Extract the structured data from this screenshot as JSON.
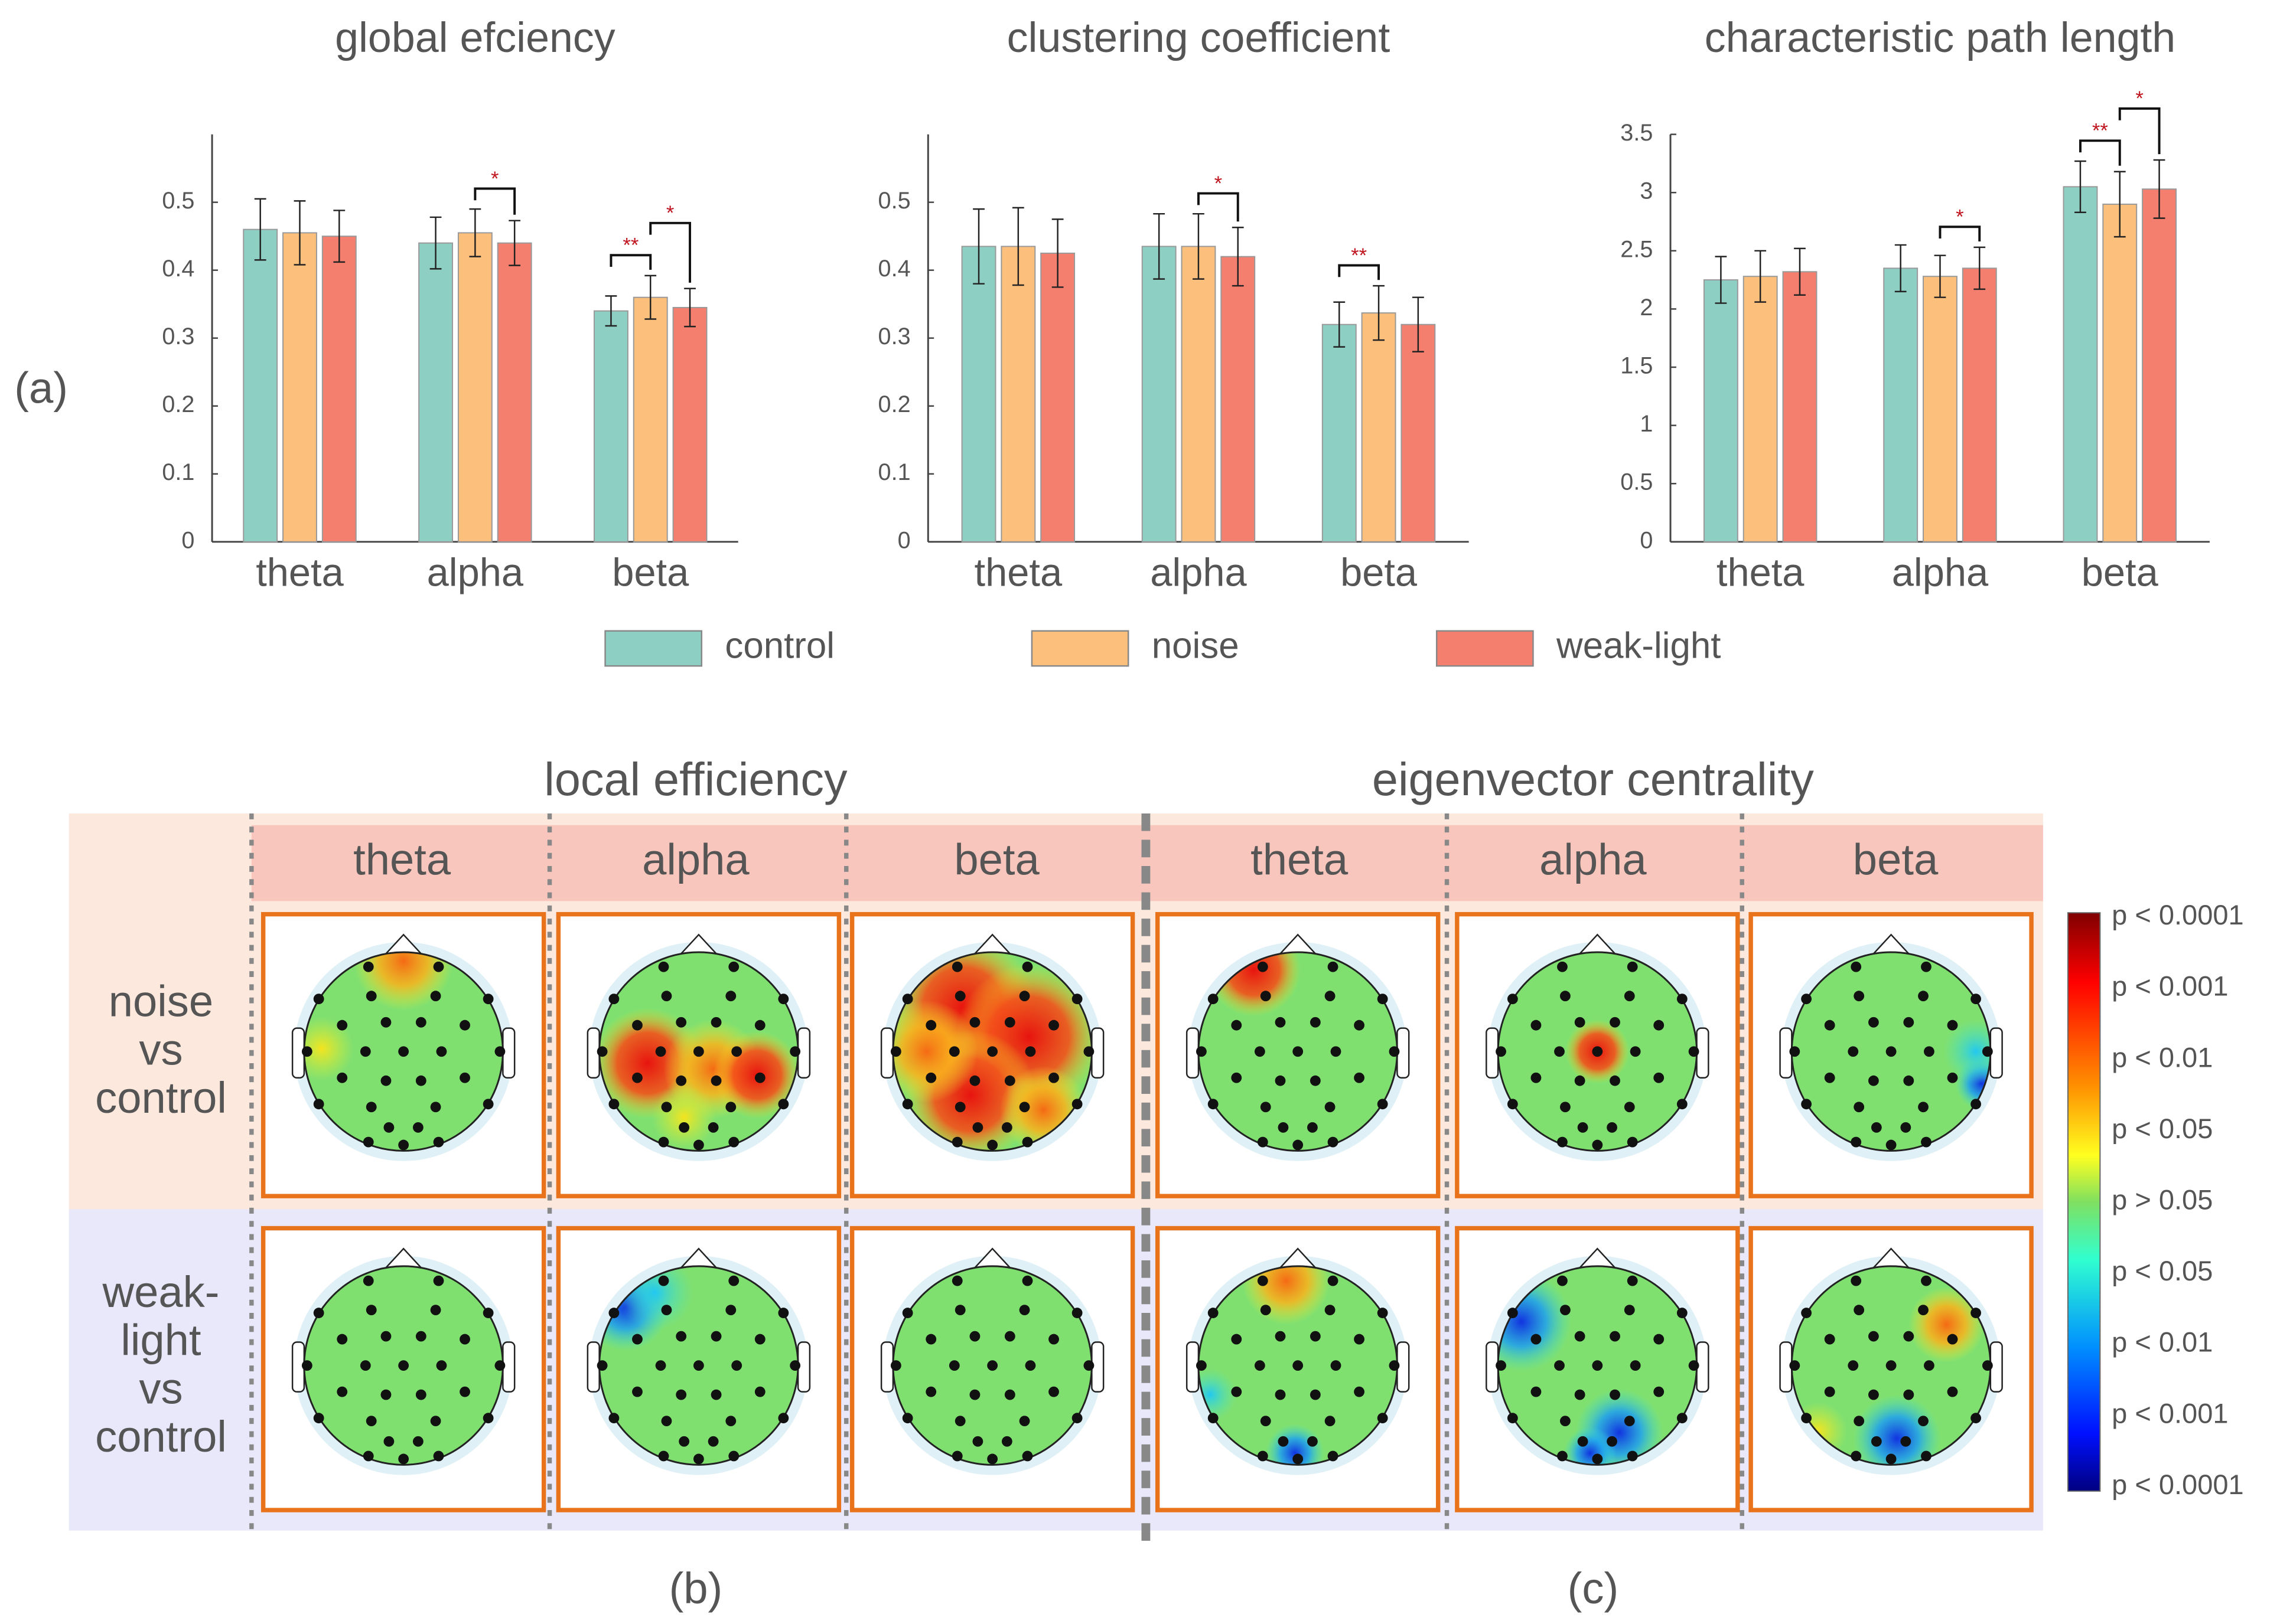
{
  "chart_data": [
    {
      "type": "bar",
      "title": "global efciency",
      "categories": [
        "theta",
        "alpha",
        "beta"
      ],
      "series": [
        {
          "name": "control",
          "color": "#8ecfc4",
          "values": [
            0.46,
            0.44,
            0.34
          ],
          "errors": [
            0.045,
            0.038,
            0.022
          ]
        },
        {
          "name": "noise",
          "color": "#fdbf7c",
          "values": [
            0.455,
            0.455,
            0.36
          ],
          "errors": [
            0.047,
            0.035,
            0.032
          ]
        },
        {
          "name": "weak-light",
          "color": "#f47f6f",
          "values": [
            0.45,
            0.44,
            0.345
          ],
          "errors": [
            0.038,
            0.033,
            0.028
          ]
        }
      ],
      "ylim": [
        0,
        0.6
      ],
      "yticks": [
        0,
        0.1,
        0.2,
        0.3,
        0.4,
        0.5
      ],
      "significance": [
        {
          "label": "*",
          "category": "alpha",
          "pair": [
            "noise",
            "weak-light"
          ]
        },
        {
          "label": "**",
          "category": "beta",
          "pair": [
            "control",
            "noise"
          ]
        },
        {
          "label": "*",
          "category": "beta",
          "pair": [
            "noise",
            "weak-light"
          ]
        }
      ]
    },
    {
      "type": "bar",
      "title": "clustering coefficient",
      "categories": [
        "theta",
        "alpha",
        "beta"
      ],
      "series": [
        {
          "name": "control",
          "color": "#8ecfc4",
          "values": [
            0.435,
            0.435,
            0.32
          ],
          "errors": [
            0.055,
            0.048,
            0.033
          ]
        },
        {
          "name": "noise",
          "color": "#fdbf7c",
          "values": [
            0.435,
            0.435,
            0.337
          ],
          "errors": [
            0.057,
            0.048,
            0.04
          ]
        },
        {
          "name": "weak-light",
          "color": "#f47f6f",
          "values": [
            0.425,
            0.42,
            0.32
          ],
          "errors": [
            0.05,
            0.043,
            0.04
          ]
        }
      ],
      "ylim": [
        0,
        0.6
      ],
      "yticks": [
        0,
        0.1,
        0.2,
        0.3,
        0.4,
        0.5
      ],
      "significance": [
        {
          "label": "*",
          "category": "alpha",
          "pair": [
            "noise",
            "weak-light"
          ]
        },
        {
          "label": "**",
          "category": "beta",
          "pair": [
            "control",
            "noise"
          ]
        }
      ]
    },
    {
      "type": "bar",
      "title": "characteristic path length",
      "categories": [
        "theta",
        "alpha",
        "beta"
      ],
      "series": [
        {
          "name": "control",
          "color": "#8ecfc4",
          "values": [
            2.25,
            2.35,
            3.05
          ],
          "errors": [
            0.2,
            0.2,
            0.22
          ]
        },
        {
          "name": "noise",
          "color": "#fdbf7c",
          "values": [
            2.28,
            2.28,
            2.9
          ],
          "errors": [
            0.22,
            0.18,
            0.28
          ]
        },
        {
          "name": "weak-light",
          "color": "#f47f6f",
          "values": [
            2.32,
            2.35,
            3.03
          ],
          "errors": [
            0.2,
            0.18,
            0.25
          ]
        }
      ],
      "ylim": [
        0,
        3.5
      ],
      "yticks": [
        0,
        0.5,
        1,
        1.5,
        2,
        2.5,
        3,
        3.5
      ],
      "significance": [
        {
          "label": "*",
          "category": "alpha",
          "pair": [
            "noise",
            "weak-light"
          ]
        },
        {
          "label": "**",
          "category": "beta",
          "pair": [
            "control",
            "noise"
          ]
        },
        {
          "label": "*",
          "category": "beta",
          "pair": [
            "noise",
            "weak-light"
          ]
        }
      ]
    }
  ],
  "panel_label": "(a)",
  "maps": {
    "sections": [
      {
        "title": "local efficiency",
        "label": "(b)",
        "bands": [
          "theta",
          "alpha",
          "beta"
        ]
      },
      {
        "title": "eigenvector centrality",
        "label": "(c)",
        "bands": [
          "theta",
          "alpha",
          "beta"
        ]
      }
    ],
    "rows": [
      [
        "noise",
        "vs",
        "control"
      ],
      [
        "weak-",
        "light",
        "vs",
        "control"
      ]
    ]
  },
  "colorbar": {
    "labels": [
      "p < 0.0001",
      "p < 0.001",
      "p < 0.01",
      "p < 0.05",
      "p > 0.05",
      "p < 0.05",
      "p < 0.01",
      "p < 0.001",
      "p < 0.0001"
    ]
  }
}
